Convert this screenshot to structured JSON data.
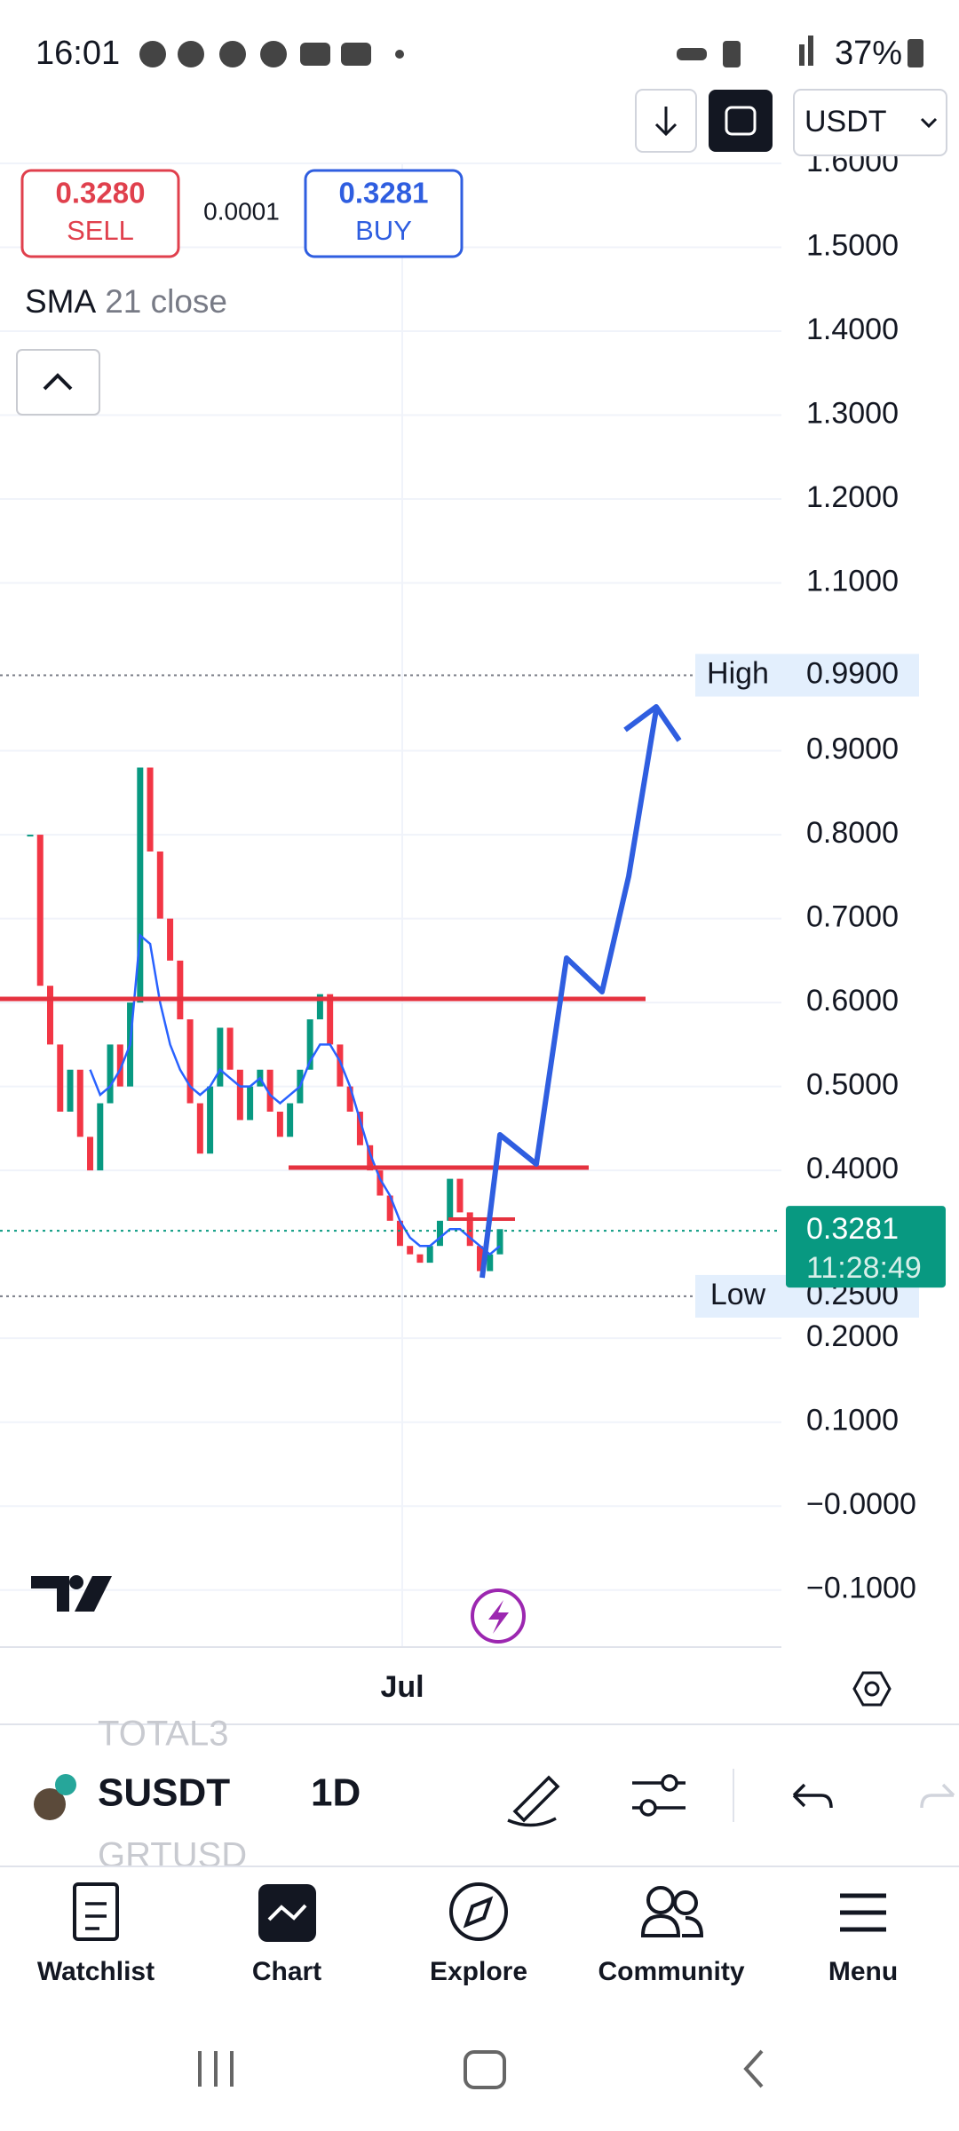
{
  "status_bar": {
    "time": "16:01",
    "battery": "37%"
  },
  "toolbar": {
    "currency": "USDT"
  },
  "quote": {
    "sell_price": "0.3280",
    "sell_label": "SELL",
    "spread": "0.0001",
    "buy_price": "0.3281",
    "buy_label": "BUY"
  },
  "indicator": {
    "name": "SMA",
    "params": "21 close"
  },
  "chart_data": {
    "type": "candlestick",
    "ylim": [
      -0.168,
      1.601
    ],
    "yticks": [
      {
        "value": 1.6,
        "label": "1.6000"
      },
      {
        "value": 1.5,
        "label": "1.5000"
      },
      {
        "value": 1.4,
        "label": "1.4000"
      },
      {
        "value": 1.3,
        "label": "1.3000"
      },
      {
        "value": 1.2,
        "label": "1.2000"
      },
      {
        "value": 1.1,
        "label": "1.1000"
      },
      {
        "value": 0.9,
        "label": "0.9000"
      },
      {
        "value": 0.8,
        "label": "0.8000"
      },
      {
        "value": 0.7,
        "label": "0.7000"
      },
      {
        "value": 0.6,
        "label": "0.6000"
      },
      {
        "value": 0.5,
        "label": "0.5000"
      },
      {
        "value": 0.4,
        "label": "0.4000"
      },
      {
        "value": 0.2,
        "label": "0.2000"
      },
      {
        "value": 0.1,
        "label": "0.1000"
      },
      {
        "value": 0,
        "label": "−0.0000"
      },
      {
        "value": -0.1,
        "label": "−0.1000"
      }
    ],
    "grid": true,
    "closes": [
      0.8,
      0.62,
      0.55,
      0.47,
      0.52,
      0.44,
      0.4,
      0.48,
      0.55,
      0.5,
      0.6,
      0.88,
      0.78,
      0.7,
      0.65,
      0.58,
      0.48,
      0.42,
      0.5,
      0.57,
      0.52,
      0.46,
      0.5,
      0.52,
      0.47,
      0.44,
      0.48,
      0.52,
      0.58,
      0.61,
      0.55,
      0.5,
      0.47,
      0.43,
      0.4,
      0.37,
      0.34,
      0.31,
      0.3,
      0.29,
      0.31,
      0.34,
      0.39,
      0.35,
      0.31,
      0.28,
      0.3,
      0.33
    ],
    "sma": [
      null,
      null,
      null,
      null,
      null,
      null,
      0.52,
      0.49,
      0.5,
      0.52,
      0.55,
      0.68,
      0.67,
      0.6,
      0.55,
      0.52,
      0.5,
      0.49,
      0.5,
      0.52,
      0.51,
      0.5,
      0.5,
      0.51,
      0.49,
      0.48,
      0.49,
      0.5,
      0.53,
      0.55,
      0.55,
      0.53,
      0.5,
      0.46,
      0.42,
      0.39,
      0.37,
      0.34,
      0.32,
      0.31,
      0.31,
      0.32,
      0.33,
      0.33,
      0.32,
      0.31,
      0.3,
      0.31
    ],
    "up_color": "#089981",
    "down_color": "#f23645",
    "sma_color": "#2962ff",
    "high": {
      "label": "High",
      "value": {
        "value": 0.99,
        "label": "0.9900"
      }
    },
    "low": {
      "label": "Low",
      "value": {
        "value": 0.25,
        "label": "0.2500"
      }
    },
    "last": {
      "value": {
        "value": 0.3281,
        "label": "0.3281"
      },
      "countdown": "11:28:49"
    },
    "x_label": "Jul"
  },
  "symbol_bar": {
    "previous": "TOTAL3",
    "symbol": "SUSDT",
    "interval": "1D",
    "next": "GRTUSD"
  },
  "nav": [
    "Watchlist",
    "Chart",
    "Explore",
    "Community",
    "Menu"
  ]
}
